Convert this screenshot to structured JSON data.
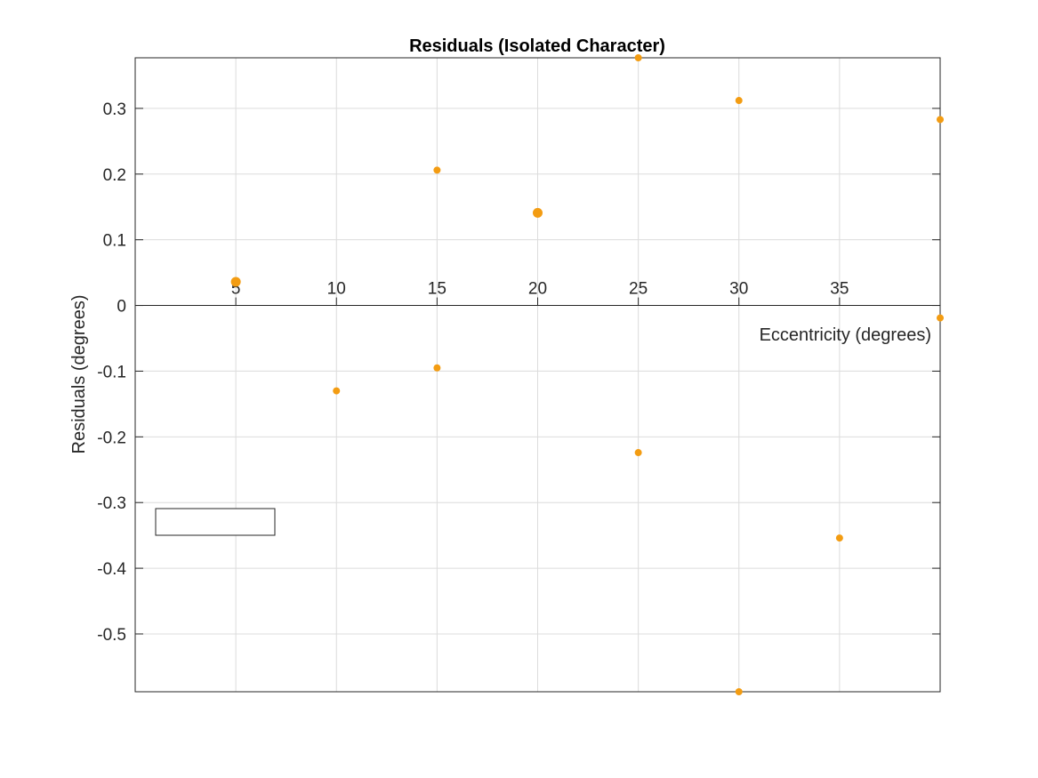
{
  "chart_data": {
    "type": "scatter",
    "title": "Residuals (Isolated Character)",
    "xlabel": "Eccentricity (degrees)",
    "ylabel": "Residuals (degrees)",
    "xlim": [
      0,
      40
    ],
    "ylim": [
      -0.588,
      0.377
    ],
    "xticks": [
      5,
      10,
      15,
      20,
      25,
      30,
      35
    ],
    "xtick_labels": [
      "5",
      "10",
      "15",
      "20",
      "25",
      "30",
      "35"
    ],
    "yticks": [
      0.3,
      0.2,
      0.1,
      0,
      -0.1,
      -0.2,
      -0.3,
      -0.4,
      -0.5
    ],
    "ytick_labels": [
      "0.3",
      "0.2",
      "0.1",
      "0",
      "-0.1",
      "-0.2",
      "-0.3",
      "-0.4",
      "-0.5"
    ],
    "grid": true,
    "x_axis_location": "origin",
    "legend": "empty box, lower-left",
    "marker_color": "#f39c12",
    "points": [
      {
        "x": 5,
        "y": 0.036,
        "large": true
      },
      {
        "x": 10,
        "y": -0.13
      },
      {
        "x": 15,
        "y": 0.206
      },
      {
        "x": 15,
        "y": -0.095
      },
      {
        "x": 20,
        "y": 0.141,
        "large": true
      },
      {
        "x": 25,
        "y": 0.377
      },
      {
        "x": 25,
        "y": -0.224
      },
      {
        "x": 30,
        "y": 0.312
      },
      {
        "x": 30,
        "y": -0.588
      },
      {
        "x": 35,
        "y": -0.354
      },
      {
        "x": 40,
        "y": 0.283
      },
      {
        "x": 40,
        "y": -0.019
      }
    ]
  }
}
